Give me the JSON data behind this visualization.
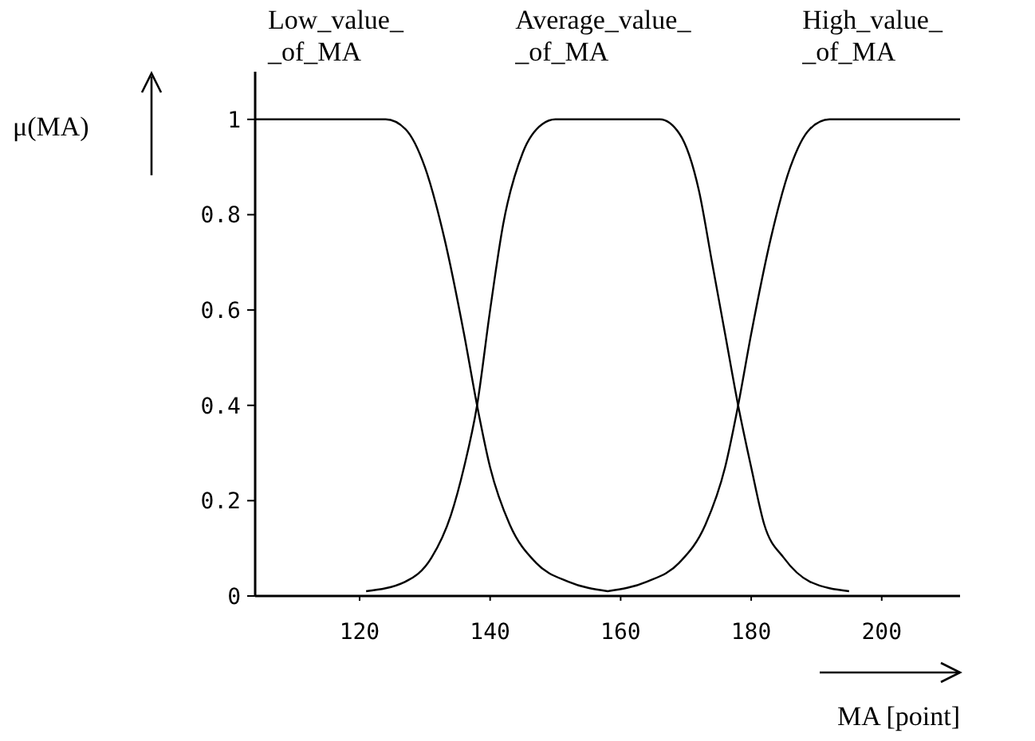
{
  "chart_data": {
    "type": "line",
    "xlabel": "MA [point]",
    "ylabel": "μ(MA)",
    "xlim": [
      104,
      212
    ],
    "ylim": [
      0,
      1.1
    ],
    "xticks": [
      120,
      140,
      160,
      180,
      200
    ],
    "yticks": [
      0,
      0.2,
      0.4,
      0.6,
      0.8,
      1
    ],
    "grid": false,
    "marker": "none",
    "line_style": "solid",
    "series": [
      {
        "name": "Low_value_\n_of_MA",
        "color": "#000000",
        "x": [
          104,
          124,
          127,
          130,
          133,
          136,
          138,
          140,
          143,
          147,
          152,
          158
        ],
        "values": [
          1,
          1,
          0.98,
          0.9,
          0.75,
          0.55,
          0.4,
          0.27,
          0.15,
          0.07,
          0.03,
          0.01
        ]
      },
      {
        "name": "Average_value_\n_of_MA",
        "color": "#000000",
        "x": [
          121,
          127,
          131,
          134,
          136,
          138,
          140,
          142,
          145,
          148,
          150,
          166,
          169,
          172,
          174,
          176,
          178,
          180,
          182,
          185,
          189,
          195
        ],
        "values": [
          0.01,
          0.03,
          0.08,
          0.17,
          0.27,
          0.4,
          0.6,
          0.78,
          0.93,
          0.99,
          1,
          1,
          0.97,
          0.85,
          0.7,
          0.55,
          0.4,
          0.27,
          0.15,
          0.08,
          0.03,
          0.01
        ]
      },
      {
        "name": "High_value_\n_of_MA",
        "color": "#000000",
        "x": [
          158,
          164,
          169,
          173,
          176,
          178,
          180,
          183,
          186,
          189,
          192,
          212
        ],
        "values": [
          0.01,
          0.03,
          0.07,
          0.15,
          0.27,
          0.4,
          0.55,
          0.75,
          0.9,
          0.98,
          1,
          1
        ]
      }
    ]
  }
}
